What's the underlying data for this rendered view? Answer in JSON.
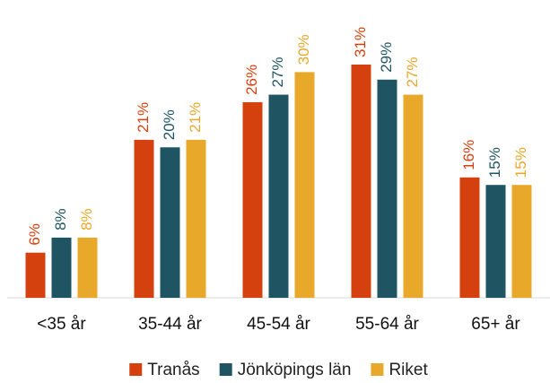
{
  "chart_data": {
    "type": "bar",
    "categories": [
      "<35 år",
      "35-44 år",
      "45-54 år",
      "55-64 år",
      "65+ år"
    ],
    "series": [
      {
        "name": "Tranås",
        "color": "#d4410f",
        "values": [
          6,
          21,
          26,
          31,
          16
        ],
        "value_labels": [
          "6%",
          "21%",
          "26%",
          "31%",
          "16%"
        ]
      },
      {
        "name": "Jönköpings län",
        "color": "#1f5562",
        "values": [
          8,
          20,
          27,
          29,
          15
        ],
        "value_labels": [
          "8%",
          "20%",
          "27%",
          "29%",
          "15%"
        ]
      },
      {
        "name": "Riket",
        "color": "#e8a82a",
        "values": [
          8,
          21,
          30,
          27,
          15
        ],
        "value_labels": [
          "8%",
          "21%",
          "30%",
          "27%",
          "15%"
        ]
      }
    ],
    "legend": "bottom"
  }
}
